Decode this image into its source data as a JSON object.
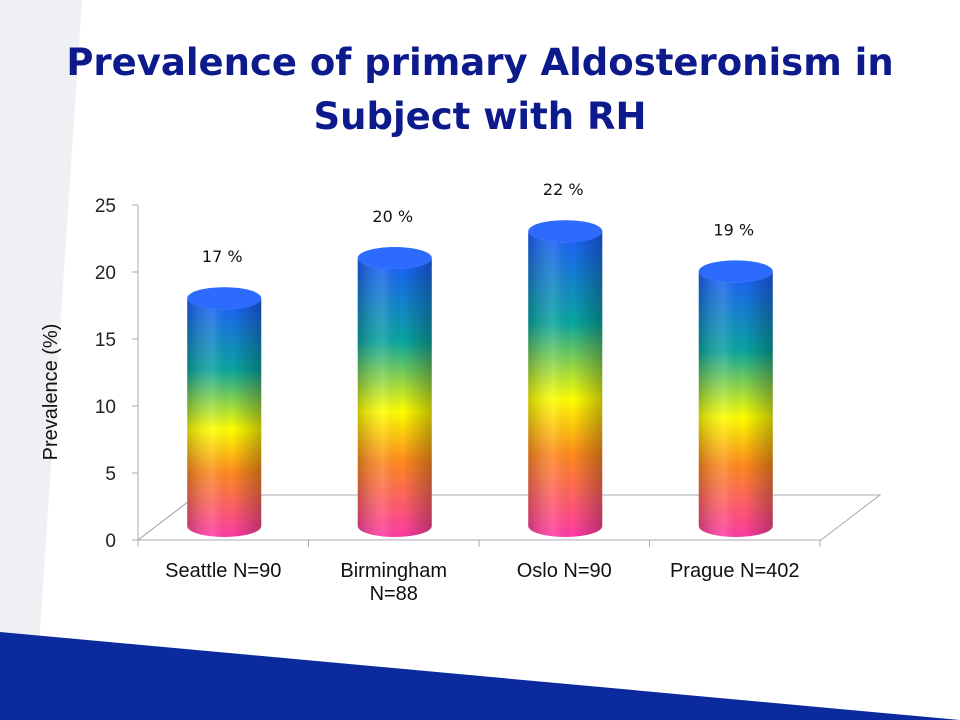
{
  "slide": {
    "title_line1": "Prevalence of primary Aldosteronism in",
    "title_line2": "Subject with RH"
  },
  "colors": {
    "title": "#0d1a8c",
    "banner": "#0a2a9e",
    "corner": "#eef0f4",
    "gradient_bottom": "#ff3aa6",
    "gradient_orange": "#ff8a1e",
    "gradient_yellow": "#ffff00",
    "gradient_teal": "#0aa6a0",
    "gradient_top": "#1e5cff"
  },
  "chart_data": {
    "type": "bar",
    "style": "3d-cylinder",
    "title": "",
    "xlabel": "",
    "ylabel": "Prevalence (%)",
    "ylim": [
      0,
      25
    ],
    "yticks": [
      "0",
      "5",
      "10",
      "15",
      "20",
      "25"
    ],
    "categories": [
      [
        "Seattle N=90"
      ],
      [
        "Birmingham",
        "N=88"
      ],
      [
        "Oslo N=90"
      ],
      [
        "Prague N=402"
      ]
    ],
    "values": [
      17,
      20,
      22,
      19
    ],
    "data_labels": [
      "17 %",
      "20 %",
      "22 %",
      "19 %"
    ],
    "grid": false,
    "legend": "none"
  }
}
